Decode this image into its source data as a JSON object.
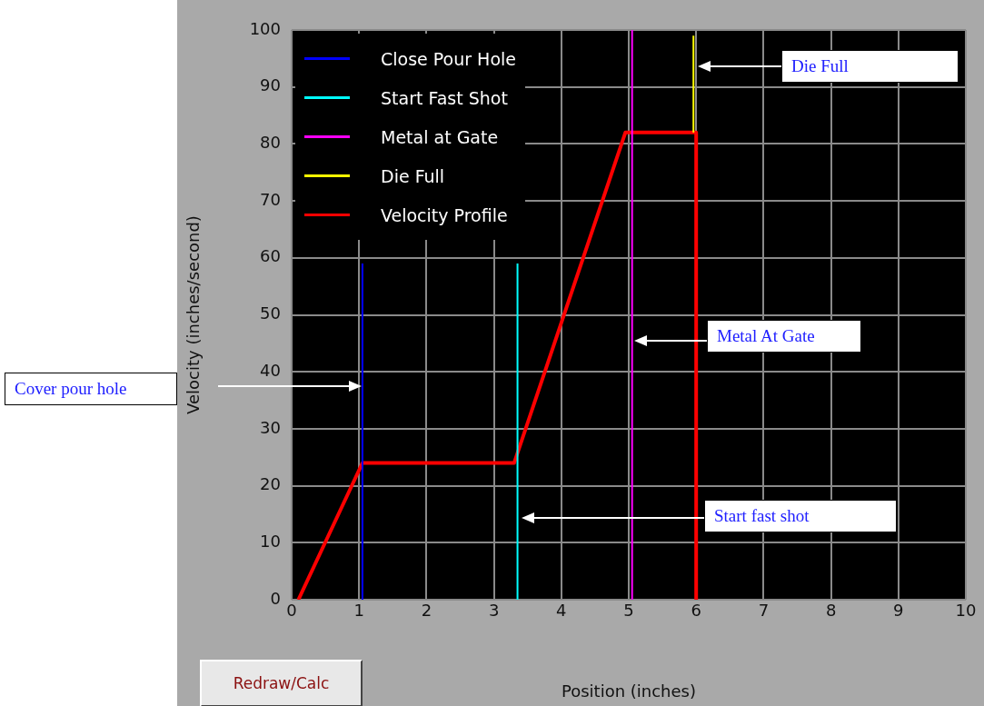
{
  "chart_data": {
    "type": "line",
    "xlabel": "Position (inches)",
    "ylabel": "Velocity (inches/second)",
    "xlim": [
      0,
      10
    ],
    "ylim": [
      0,
      100
    ],
    "xticks": [
      0,
      1,
      2,
      3,
      4,
      5,
      6,
      7,
      8,
      9,
      10
    ],
    "yticks": [
      0,
      10,
      20,
      30,
      40,
      50,
      60,
      70,
      80,
      90,
      100
    ],
    "grid": true,
    "legend": "top left",
    "marker": "none",
    "line_style": "solid",
    "series": [
      {
        "name": "Close Pour Hole",
        "color": "#0000ff",
        "x": [
          1.05,
          1.05
        ],
        "values": [
          0,
          59
        ]
      },
      {
        "name": "Start Fast Shot",
        "color": "#00ffff",
        "x": [
          3.35,
          3.35
        ],
        "values": [
          0,
          59
        ]
      },
      {
        "name": "Metal at Gate",
        "color": "#ff00ff",
        "x": [
          5.05,
          5.05
        ],
        "values": [
          0,
          100
        ]
      },
      {
        "name": "Die Full",
        "color": "#ffff00",
        "x": [
          5.96,
          5.96
        ],
        "values": [
          82,
          99
        ]
      },
      {
        "name": "Velocity Profile",
        "color": "#ff0000",
        "x": [
          0.1,
          1.05,
          3.3,
          4.95,
          6,
          6
        ],
        "values": [
          0,
          24,
          24,
          82,
          82,
          0
        ]
      }
    ],
    "annotations": [
      "Cover pour hole",
      "Metal At Gate",
      "Start fast shot",
      "Die Full",
      "Redraw/Calc"
    ]
  }
}
